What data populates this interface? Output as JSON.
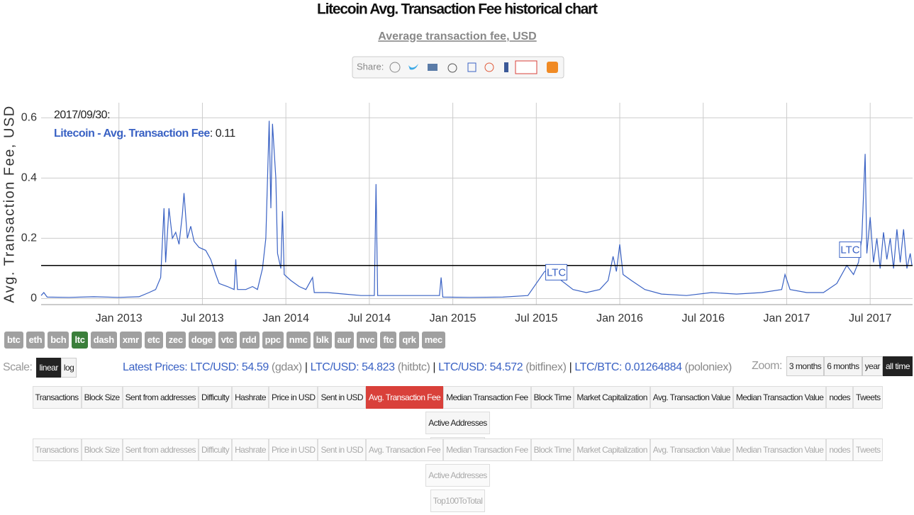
{
  "header": {
    "title": "Litecoin Avg. Transaction Fee historical chart",
    "subtitle": "Average transaction fee, USD",
    "share_label": "Share:"
  },
  "chart_data": {
    "type": "line",
    "y_label": "Avg. Transaction Fee, USD",
    "xlim": [
      2012.534,
      2017.754
    ],
    "xticks": [
      {
        "value": 2013.0,
        "label": "Jan 2013"
      },
      {
        "value": 2013.5,
        "label": "Jul 2013"
      },
      {
        "value": 2014.0,
        "label": "Jan 2014"
      },
      {
        "value": 2014.5,
        "label": "Jul 2014"
      },
      {
        "value": 2015.0,
        "label": "Jan 2015"
      },
      {
        "value": 2015.5,
        "label": "Jul 2015"
      },
      {
        "value": 2016.0,
        "label": "Jan 2016"
      },
      {
        "value": 2016.5,
        "label": "Jul 2016"
      },
      {
        "value": 2017.0,
        "label": "Jan 2017"
      },
      {
        "value": 2017.5,
        "label": "Jul 2017"
      }
    ],
    "ylim": [
      -0.02,
      0.65
    ],
    "yticks": [
      0,
      0.2,
      0.4,
      0.6
    ],
    "grid": true,
    "series": [
      {
        "name": "Litecoin - Avg. Transaction Fee",
        "color": "#3a62c4",
        "x": [
          2012.534,
          2012.55,
          2012.57,
          2012.7,
          2012.85,
          2013.0,
          2013.12,
          2013.18,
          2013.22,
          2013.25,
          2013.27,
          2013.28,
          2013.3,
          2013.32,
          2013.34,
          2013.36,
          2013.38,
          2013.39,
          2013.41,
          2013.43,
          2013.45,
          2013.48,
          2013.52,
          2013.55,
          2013.58,
          2013.6,
          2013.65,
          2013.69,
          2013.7,
          2013.71,
          2013.76,
          2013.8,
          2013.83,
          2013.86,
          2013.88,
          2013.9,
          2013.91,
          2013.92,
          2013.94,
          2013.95,
          2013.97,
          2013.98,
          2013.99,
          2014.03,
          2014.08,
          2014.12,
          2014.16,
          2014.17,
          2014.25,
          2014.35,
          2014.45,
          2014.53,
          2014.54,
          2014.55,
          2014.7,
          2014.85,
          2014.92,
          2014.93,
          2014.94,
          2015.1,
          2015.3,
          2015.45,
          2015.5,
          2015.55,
          2015.6,
          2015.65,
          2015.72,
          2015.8,
          2015.88,
          2015.93,
          2015.96,
          2015.98,
          2016.0,
          2016.02,
          2016.07,
          2016.15,
          2016.25,
          2016.4,
          2016.55,
          2016.7,
          2016.85,
          2016.97,
          2016.99,
          2017.02,
          2017.12,
          2017.22,
          2017.3,
          2017.36,
          2017.4,
          2017.43,
          2017.45,
          2017.47,
          2017.48,
          2017.5,
          2017.52,
          2017.54,
          2017.56,
          2017.58,
          2017.6,
          2017.62,
          2017.64,
          2017.66,
          2017.68,
          2017.7,
          2017.72,
          2017.74,
          2017.75
        ],
        "values": [
          0.01,
          0.02,
          0.005,
          0.004,
          0.006,
          0.004,
          0.006,
          0.02,
          0.03,
          0.07,
          0.3,
          0.12,
          0.3,
          0.2,
          0.22,
          0.18,
          0.28,
          0.35,
          0.2,
          0.24,
          0.19,
          0.17,
          0.16,
          0.13,
          0.08,
          0.05,
          0.04,
          0.03,
          0.13,
          0.03,
          0.03,
          0.04,
          0.03,
          0.1,
          0.2,
          0.59,
          0.3,
          0.58,
          0.4,
          0.15,
          0.1,
          0.29,
          0.08,
          0.06,
          0.04,
          0.03,
          0.07,
          0.02,
          0.02,
          0.015,
          0.01,
          0.01,
          0.38,
          0.01,
          0.01,
          0.01,
          0.01,
          0.07,
          0.005,
          0.004,
          0.005,
          0.01,
          0.05,
          0.09,
          0.1,
          0.06,
          0.03,
          0.02,
          0.03,
          0.06,
          0.14,
          0.09,
          0.18,
          0.08,
          0.06,
          0.03,
          0.015,
          0.01,
          0.02,
          0.015,
          0.02,
          0.03,
          0.08,
          0.03,
          0.02,
          0.02,
          0.05,
          0.11,
          0.08,
          0.12,
          0.2,
          0.48,
          0.15,
          0.27,
          0.12,
          0.2,
          0.1,
          0.22,
          0.13,
          0.2,
          0.1,
          0.23,
          0.12,
          0.23,
          0.1,
          0.15,
          0.11
        ]
      }
    ],
    "tooltip": {
      "date": "2017/09/30:",
      "separator": ":",
      "value": 0.11
    },
    "annotations": [
      {
        "text": "LTC",
        "x": 2015.62,
        "y": 0.085
      },
      {
        "text": "LTC",
        "x": 2017.38,
        "y": 0.16
      }
    ]
  },
  "coins": [
    "btc",
    "eth",
    "bch",
    "ltc",
    "dash",
    "xmr",
    "etc",
    "zec",
    "doge",
    "vtc",
    "rdd",
    "ppc",
    "nmc",
    "blk",
    "aur",
    "nvc",
    "ftc",
    "qrk",
    "mec"
  ],
  "active_coin": "ltc",
  "scale": {
    "label": "Scale:",
    "options": [
      "linear",
      "log"
    ],
    "active": "linear"
  },
  "latest_prices": {
    "label": "Latest Prices:",
    "separator": "|",
    "items": [
      {
        "pair": "LTC/USD:",
        "price": 54.59,
        "exchange": "(gdax)"
      },
      {
        "pair": "LTC/USD:",
        "price": 54.823,
        "exchange": "(hitbtc)"
      },
      {
        "pair": "LTC/USD:",
        "price": 54.572,
        "exchange": "(bitfinex)"
      },
      {
        "pair": "LTC/BTC:",
        "price": 0.01264884,
        "exchange": "(poloniex)"
      }
    ]
  },
  "zoom": {
    "label": "Zoom:",
    "options": [
      "3 months",
      "6 months",
      "year",
      "all time"
    ],
    "active": "all time"
  },
  "metrics": [
    "Transactions",
    "Block Size",
    "Sent from addresses",
    "Difficulty",
    "Hashrate",
    "Price in USD",
    "Sent in USD",
    "Avg. Transaction Fee",
    "Median Transaction Fee",
    "Block Time",
    "Market Capitalization",
    "Avg. Transaction Value",
    "Median Transaction Value",
    "nodes",
    "Tweets",
    "Active Addresses",
    "Top100ToTotal"
  ],
  "active_metric": "Avg. Transaction Fee",
  "metrics_secondary": [
    "Transactions",
    "Block Size",
    "Sent from addresses",
    "Difficulty",
    "Hashrate",
    "Price in USD",
    "Sent in USD",
    "Avg. Transaction Fee",
    "Median Transaction Fee",
    "Block Time",
    "Market Capitalization",
    "Avg. Transaction Value",
    "Median Transaction Value",
    "nodes",
    "Tweets",
    "Active Addresses",
    "Top100ToTotal"
  ]
}
